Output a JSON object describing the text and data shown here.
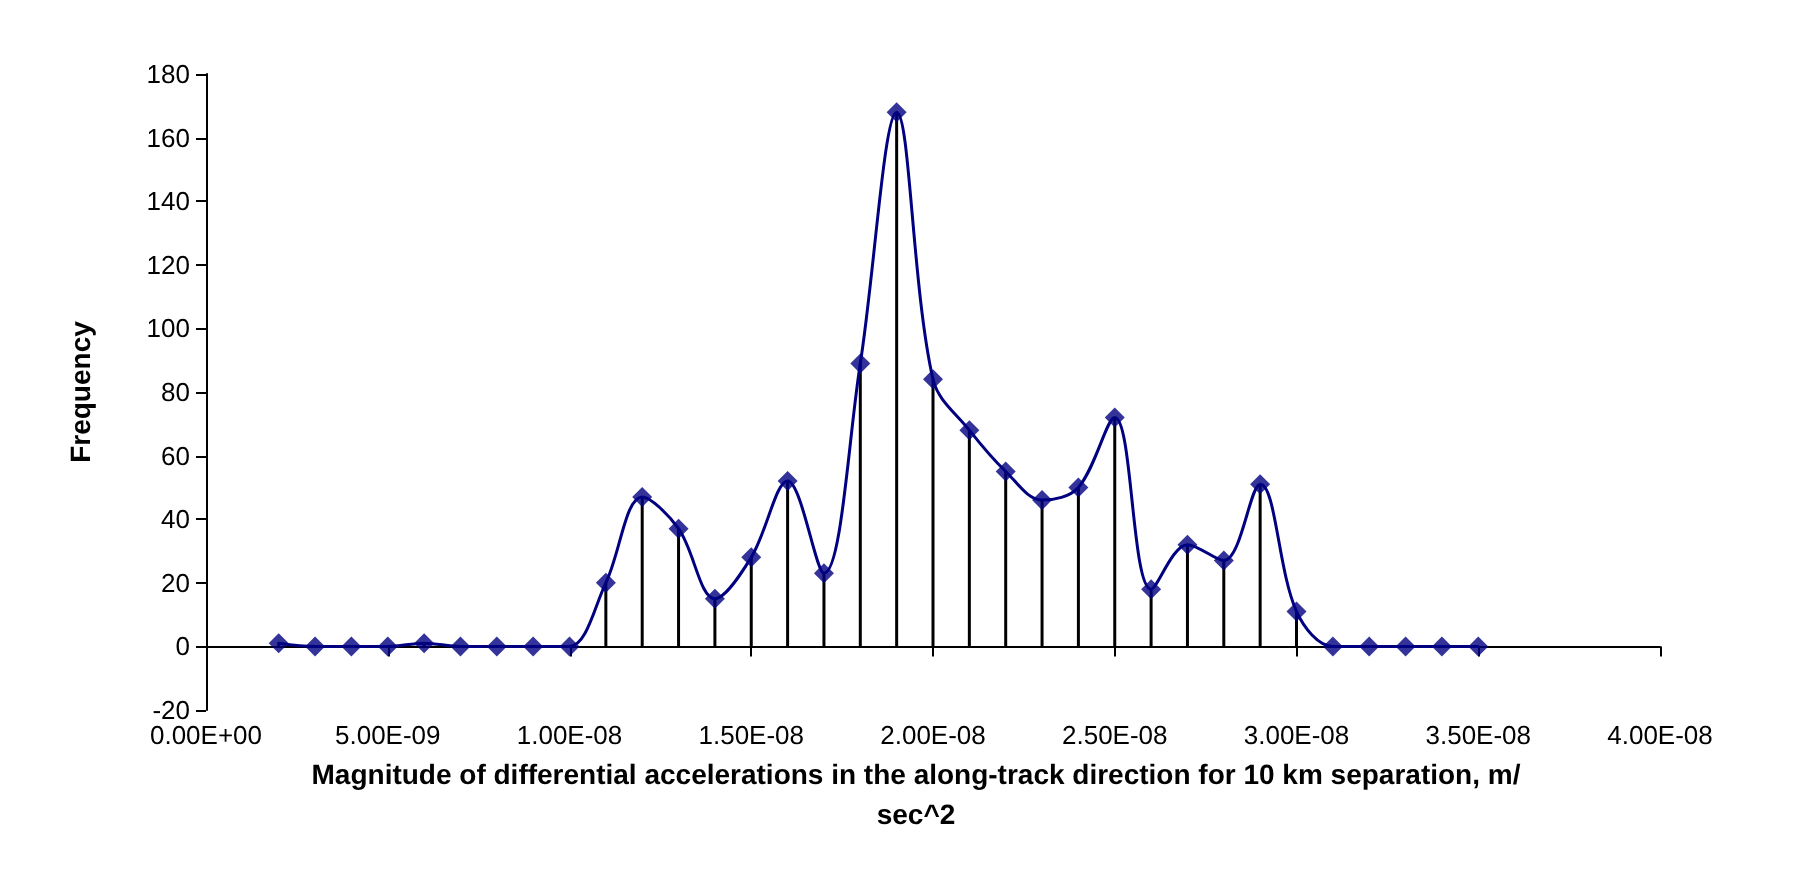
{
  "chart_data": {
    "type": "line",
    "xlabel": "Magnitude of differential accelerations in the along-track direction for 10 km separation, m/sec^2",
    "ylabel": "Frequency",
    "x": [
      2e-09,
      3e-09,
      4e-09,
      5e-09,
      6e-09,
      7e-09,
      8e-09,
      9e-09,
      1e-08,
      1.1e-08,
      1.2e-08,
      1.3e-08,
      1.4e-08,
      1.5e-08,
      1.6e-08,
      1.7e-08,
      1.8e-08,
      1.9e-08,
      2e-08,
      2.1e-08,
      2.2e-08,
      2.3e-08,
      2.4e-08,
      2.5e-08,
      2.6e-08,
      2.7e-08,
      2.8e-08,
      2.9e-08,
      3e-08,
      3.1e-08,
      3.2e-08,
      3.3e-08,
      3.4e-08,
      3.5e-08
    ],
    "series": [
      {
        "color": "#000080",
        "marker": "none",
        "values": [
          1,
          0,
          0,
          0,
          1,
          0,
          0,
          0,
          0,
          20,
          47,
          37,
          15,
          28,
          52,
          23,
          89,
          168,
          84,
          68,
          55,
          46,
          50,
          72,
          18,
          32,
          27,
          51,
          11,
          0,
          0,
          0,
          0,
          0
        ]
      },
      {
        "type": "lollipop",
        "color": "#000080",
        "values": [
          1,
          0,
          0,
          0,
          1,
          0,
          0,
          0,
          0,
          20,
          47,
          37,
          15,
          28,
          52,
          23,
          89,
          168,
          84,
          68,
          55,
          46,
          50,
          72,
          18,
          32,
          27,
          51,
          11,
          0,
          0,
          0,
          0,
          0
        ]
      }
    ],
    "xlim": [
      0,
      4e-08
    ],
    "xticks": [
      {
        "value": 0,
        "label": "0.00E+00"
      },
      {
        "value": 5e-09,
        "label": "5.00E-09"
      },
      {
        "value": 1e-08,
        "label": "1.00E-08"
      },
      {
        "value": 1.5e-08,
        "label": "1.50E-08"
      },
      {
        "value": 2e-08,
        "label": "2.00E-08"
      },
      {
        "value": 2.5e-08,
        "label": "2.50E-08"
      },
      {
        "value": 3e-08,
        "label": "3.00E-08"
      },
      {
        "value": 3.5e-08,
        "label": "3.50E-08"
      },
      {
        "value": 4e-08,
        "label": "4.00E-08"
      }
    ],
    "ylim": [
      -20,
      180
    ],
    "yticks": [
      -20,
      0,
      20,
      40,
      60,
      80,
      100,
      120,
      140,
      160,
      180
    ],
    "marker": "diamond",
    "line_style": "solid"
  }
}
